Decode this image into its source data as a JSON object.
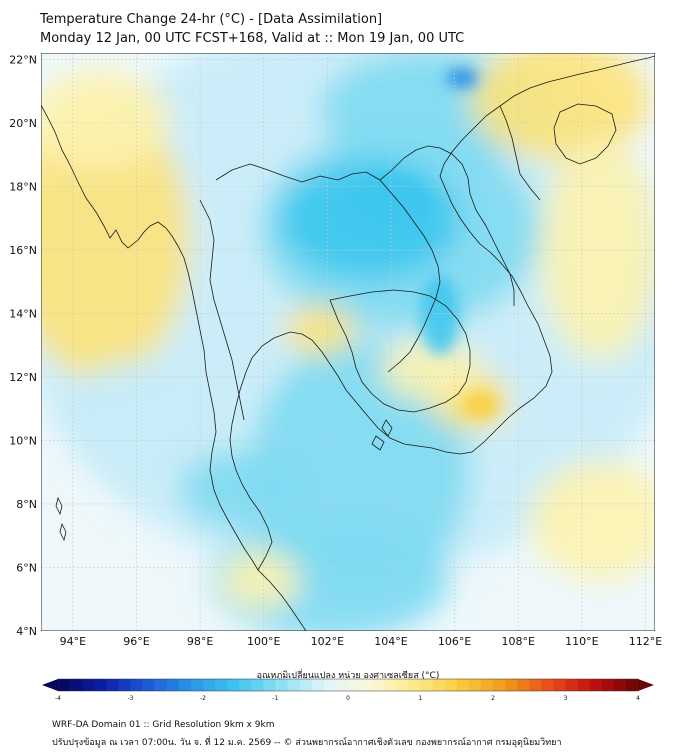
{
  "title": {
    "line1": "Temperature Change 24-hr (°C) - [Data Assimilation]",
    "line2": "Monday 12 Jan, 00 UTC FCST+168, Valid at :: Mon 19 Jan, 00 UTC"
  },
  "map": {
    "lat_labels": [
      "22°N",
      "20°N",
      "18°N",
      "16°N",
      "14°N",
      "12°N",
      "10°N",
      "8°N",
      "6°N",
      "4°N"
    ],
    "lat_values": [
      22,
      20,
      18,
      16,
      14,
      12,
      10,
      8,
      6,
      4
    ],
    "lon_labels": [
      "94°E",
      "96°E",
      "98°E",
      "100°E",
      "102°E",
      "104°E",
      "106°E",
      "108°E",
      "110°E",
      "112°E"
    ],
    "lon_values": [
      94,
      96,
      98,
      100,
      102,
      104,
      106,
      108,
      110,
      112
    ],
    "lat_range": [
      4,
      22.2
    ],
    "lon_range": [
      93,
      112.3
    ],
    "colors": {
      "cool_light": "#c8ecf8",
      "cool_mid": "#7fdaf2",
      "cool_strong": "#3cc6ee",
      "cool_deep": "#1e88e5",
      "warm_light": "#fdf3b0",
      "warm_mid": "#fde37a",
      "warm_strong": "#f9cc3c",
      "neutral": "#eef8fb",
      "grid": "#c9c9c9",
      "coast": "#1a1a1a"
    }
  },
  "colorbar": {
    "title": "อุณหภูมิเปลี่ยนแปลง หน่วย องศาเซลเซียส (°C)",
    "tick_labels": [
      "-4",
      "-3",
      "-2",
      "-1",
      "0",
      "1",
      "2",
      "3",
      "4"
    ],
    "tick_values": [
      -4,
      -3,
      -2,
      -1,
      0,
      1,
      2,
      3,
      4
    ],
    "range": [
      -4,
      4
    ],
    "colors": [
      "#06045c",
      "#0a1ea8",
      "#1e5ad6",
      "#2a96e8",
      "#3cc6ee",
      "#8fe0f4",
      "#dff6fb",
      "#fbf7d6",
      "#fde98a",
      "#f9cc3c",
      "#f29a1c",
      "#e8501a",
      "#c01010",
      "#6a0404"
    ]
  },
  "footer": {
    "line1": "WRF-DA Domain 01 :: Grid Resolution 9km x 9km",
    "line2": "ปรับปรุงข้อมูล ณ เวลา 07:00น. วัน จ. ที่ 12 ม.ค. 2569 -- © ส่วนพยากรณ์อากาศเชิงตัวเลข กองพยากรณ์อากาศ กรมอุตุนิยมวิทยา"
  }
}
